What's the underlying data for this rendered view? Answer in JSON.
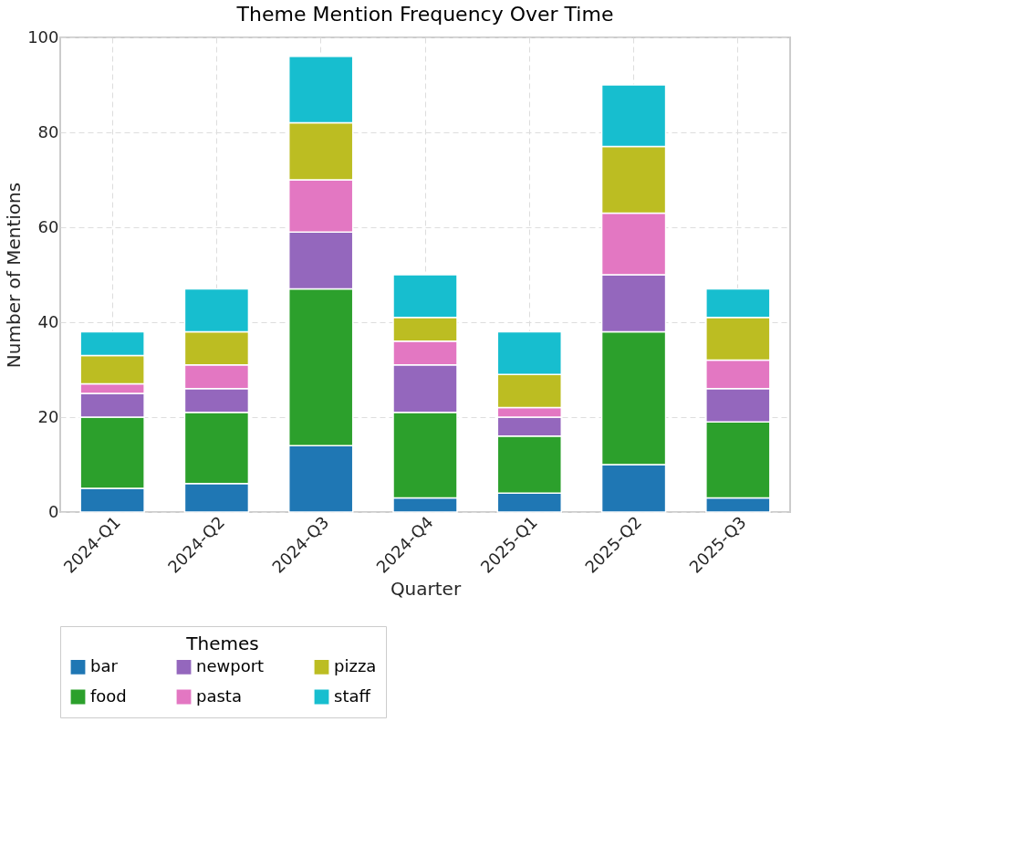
{
  "chart_data": {
    "type": "bar",
    "title": "Theme Mention Frequency Over Time",
    "xlabel": "Quarter",
    "ylabel": "Number of Mentions",
    "legend_title": "Themes",
    "categories": [
      "2024-Q1",
      "2024-Q2",
      "2024-Q3",
      "2024-Q4",
      "2025-Q1",
      "2025-Q2",
      "2025-Q3"
    ],
    "stacked": true,
    "series": [
      {
        "name": "bar",
        "color": "#1f77b4",
        "values": [
          5,
          6,
          14,
          3,
          4,
          10,
          3
        ]
      },
      {
        "name": "food",
        "color": "#2ca02c",
        "values": [
          15,
          15,
          33,
          18,
          12,
          28,
          16
        ]
      },
      {
        "name": "newport",
        "color": "#9467bd",
        "values": [
          5,
          5,
          12,
          10,
          4,
          12,
          7
        ]
      },
      {
        "name": "pasta",
        "color": "#e377c2",
        "values": [
          2,
          5,
          11,
          5,
          2,
          13,
          6
        ]
      },
      {
        "name": "pizza",
        "color": "#bcbd22",
        "values": [
          6,
          7,
          12,
          5,
          7,
          14,
          9
        ]
      },
      {
        "name": "staff",
        "color": "#17becf",
        "values": [
          5,
          9,
          14,
          9,
          9,
          13,
          6
        ]
      }
    ],
    "ylim": [
      0,
      100
    ],
    "yticks": [
      0,
      20,
      40,
      60,
      80,
      100
    ],
    "grid": true,
    "legend": "bottom"
  }
}
